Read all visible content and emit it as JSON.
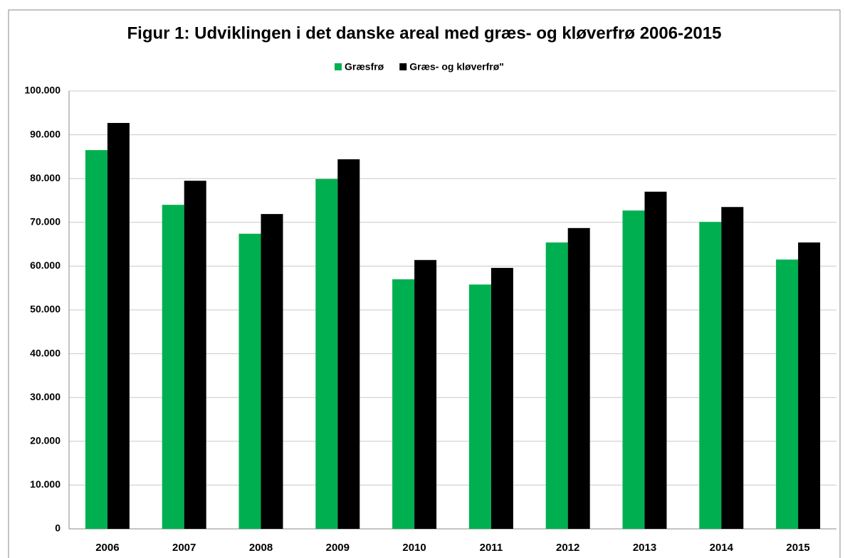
{
  "chart_data": {
    "type": "bar",
    "title": "Figur 1: Udviklingen i det danske areal med græs- og kløverfrø 2006-2015",
    "categories": [
      "2006",
      "2007",
      "2008",
      "2009",
      "2010",
      "2011",
      "2012",
      "2013",
      "2014",
      "2015"
    ],
    "series": [
      {
        "name": "Græsfrø",
        "color": "#00b050",
        "values": [
          86500,
          74000,
          67400,
          79900,
          57000,
          55800,
          65400,
          72700,
          70100,
          61500
        ]
      },
      {
        "name": "Græs- og kløverfrø\"",
        "color": "#000000",
        "values": [
          92700,
          79500,
          71900,
          84400,
          61400,
          59600,
          68700,
          77000,
          73500,
          65400
        ]
      }
    ],
    "ylim": [
      0,
      100000
    ],
    "yticks": [
      0,
      {
        "value": 10000,
        "label": "10.000"
      },
      {
        "value": 20000,
        "label": "20.000"
      },
      {
        "value": 30000,
        "label": "30.000"
      },
      {
        "value": 40000,
        "label": "40.000"
      },
      {
        "value": 50000,
        "label": "50.000"
      },
      {
        "value": 60000,
        "label": "60.000"
      },
      {
        "value": 70000,
        "label": "70.000"
      },
      {
        "value": 80000,
        "label": "80.000"
      },
      {
        "value": 90000,
        "label": "90.000"
      },
      {
        "value": 100000,
        "label": "100.000"
      }
    ],
    "grid": true,
    "legend": "top"
  }
}
